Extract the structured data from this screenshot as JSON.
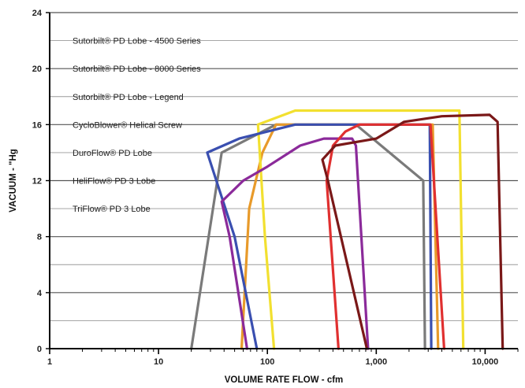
{
  "chart_data": {
    "type": "line",
    "title": "",
    "xlabel": "VOLUME RATE FLOW - cfm",
    "ylabel": "VACUUM - \"Hg",
    "x_scale": "log",
    "xlim": [
      1,
      20000
    ],
    "ylim": [
      0,
      24
    ],
    "x_tick_labels": [
      "1",
      "10",
      "100",
      "1,000",
      "10,000"
    ],
    "x_tick_values": [
      1,
      10,
      100,
      1000,
      10000
    ],
    "y_tick_labels": [
      "0",
      "4",
      "8",
      "12",
      "16",
      "20",
      "24"
    ],
    "y_tick_values": [
      0,
      4,
      8,
      12,
      16,
      20,
      24
    ],
    "grid": "horizontal",
    "legend_position": "top-left",
    "legend": [
      "Sutorbilt® PD Lobe - 4500 Series",
      "Sutorbilt® PD Lobe - 8000 Series",
      "Sutorbilt® PD Lobe - Legend",
      "CycloBlower® Helical Screw",
      "DuroFlow® PD Lobe",
      "HeliFlow® PD 3 Lobe",
      "TriFlow® PD 3 Lobe"
    ],
    "series": [
      {
        "color": "#7a7a7a",
        "x": [
          20,
          38,
          120,
          650,
          2700,
          2800
        ],
        "y": [
          0,
          14,
          16,
          16,
          12,
          0
        ]
      },
      {
        "color": "#e89a2a",
        "x": [
          58,
          68,
          90,
          120,
          3300,
          3700
        ],
        "y": [
          0,
          10,
          14,
          16,
          16,
          0
        ]
      },
      {
        "color": "#f2e030",
        "x": [
          115,
          95,
          82,
          180,
          5800,
          6300
        ],
        "y": [
          0,
          8,
          16,
          17,
          17,
          0
        ]
      },
      {
        "color": "#3a4fb0",
        "x": [
          80,
          50,
          28,
          55,
          180,
          3100,
          3200
        ],
        "y": [
          0,
          8,
          14,
          15,
          16,
          16,
          0
        ]
      },
      {
        "color": "#8b2a9a",
        "x": [
          65,
          45,
          38,
          60,
          100,
          200,
          330,
          600,
          650,
          840
        ],
        "y": [
          0,
          8,
          10.5,
          12,
          13,
          14.5,
          15,
          15,
          14.5,
          0
        ]
      },
      {
        "color": "#e03030",
        "x": [
          450,
          350,
          400,
          520,
          700,
          1550,
          3150,
          4200
        ],
        "y": [
          0,
          12,
          14.5,
          15.5,
          16,
          16,
          16,
          0
        ]
      },
      {
        "color": "#7a1818",
        "x": [
          820,
          360,
          320,
          420,
          1000,
          1800,
          4000,
          11000,
          13000,
          14500
        ],
        "y": [
          0,
          12,
          13.5,
          14.5,
          15,
          16.2,
          16.6,
          16.7,
          16.2,
          0
        ]
      }
    ]
  }
}
